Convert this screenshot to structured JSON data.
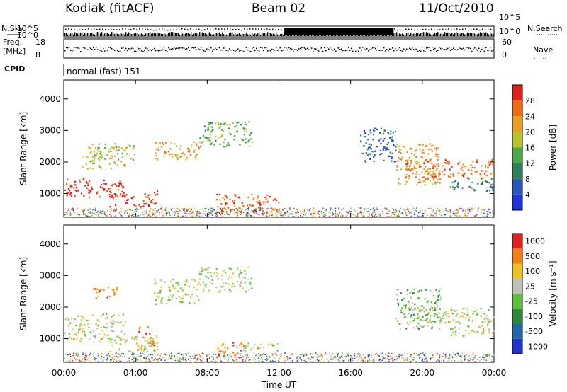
{
  "header": {
    "station": "Kodiak (fitACF)",
    "beam": "Beam 02",
    "date": "11/Oct/2010"
  },
  "panels": {
    "nsky": {
      "label": "N.Sky",
      "ticks": [
        "10^5",
        "10^0"
      ]
    },
    "nsearch": {
      "label": "N.Search",
      "ticks": [
        "10^5",
        "10^0"
      ]
    },
    "freq": {
      "label": "Freq.",
      "unit": "[MHz]",
      "ticks": [
        "18",
        "8"
      ]
    },
    "nave": {
      "label": "Nave",
      "ticks": [
        "60",
        "0"
      ]
    },
    "cpid": {
      "label": "CPID",
      "value": "normal (fast) 151"
    }
  },
  "chart_data": [
    {
      "type": "heatmap",
      "name": "power",
      "ylabel": "Slant Range [km]",
      "yticks": [
        1000,
        2000,
        3000,
        4000
      ],
      "ylim": [
        250,
        4600
      ],
      "colorbar_label": "Power [dB]",
      "colorbar_ticks": [
        "28",
        "24",
        "20",
        "16",
        "12",
        "8",
        "4"
      ],
      "colors": [
        "#1f33d6",
        "#2b57b8",
        "#2f7f5a",
        "#4aa84a",
        "#b8c42a",
        "#e8a020",
        "#f06a10",
        "#e0201a"
      ],
      "regions": [
        {
          "t0": 0.0,
          "t1": 3.4,
          "r0": 900,
          "r1": 1500,
          "level": 7
        },
        {
          "t0": 2.5,
          "t1": 5.2,
          "r0": 600,
          "r1": 1100,
          "level": 7
        },
        {
          "t0": 1.0,
          "t1": 4.0,
          "r0": 1800,
          "r1": 2600,
          "level": 4
        },
        {
          "t0": 5.0,
          "t1": 7.5,
          "r0": 2100,
          "r1": 2700,
          "level": 5
        },
        {
          "t0": 7.5,
          "t1": 10.5,
          "r0": 2500,
          "r1": 3300,
          "level": 3
        },
        {
          "t0": 8.5,
          "t1": 12.0,
          "r0": 400,
          "r1": 1000,
          "level": 6
        },
        {
          "t0": 18.5,
          "t1": 21.0,
          "r0": 1300,
          "r1": 2600,
          "level": 5
        },
        {
          "t0": 19.0,
          "t1": 24.0,
          "r0": 1500,
          "r1": 2100,
          "level": 6
        },
        {
          "t0": 21.5,
          "t1": 24.0,
          "r0": 1100,
          "r1": 1500,
          "level": 2
        },
        {
          "t0": 16.5,
          "t1": 18.5,
          "r0": 2000,
          "r1": 3100,
          "level": 1
        }
      ]
    },
    {
      "type": "heatmap",
      "name": "velocity",
      "ylabel": "Slant Range [km]",
      "yticks": [
        1000,
        2000,
        3000,
        4000
      ],
      "ylim": [
        250,
        4600
      ],
      "colorbar_label": "Velocity [m s⁻¹]",
      "colorbar_ticks": [
        "1000",
        "500",
        "100",
        "25",
        "-25",
        "-100",
        "-500",
        "-1000"
      ],
      "colors": [
        "#2233cc",
        "#2266aa",
        "#2e8a3a",
        "#5cc03a",
        "#c0c0b8",
        "#f0c020",
        "#f08010",
        "#e02020"
      ],
      "regions": [
        {
          "t0": 0.0,
          "t1": 3.4,
          "r0": 900,
          "r1": 1800,
          "level": 4
        },
        {
          "t0": 2.5,
          "t1": 5.2,
          "r0": 600,
          "r1": 1100,
          "level": 4
        },
        {
          "t0": 4.0,
          "t1": 5.0,
          "r0": 700,
          "r1": 1400,
          "level": 6
        },
        {
          "t0": 5.0,
          "t1": 7.5,
          "r0": 2100,
          "r1": 2900,
          "level": 4
        },
        {
          "t0": 7.5,
          "t1": 10.5,
          "r0": 2500,
          "r1": 3300,
          "level": 4
        },
        {
          "t0": 8.5,
          "t1": 10.0,
          "r0": 400,
          "r1": 900,
          "level": 6
        },
        {
          "t0": 10.0,
          "t1": 12.0,
          "r0": 600,
          "r1": 900,
          "level": 4
        },
        {
          "t0": 18.5,
          "t1": 21.0,
          "r0": 1300,
          "r1": 2600,
          "level": 3
        },
        {
          "t0": 19.0,
          "t1": 24.0,
          "r0": 1500,
          "r1": 2000,
          "level": 4
        },
        {
          "t0": 21.5,
          "t1": 24.0,
          "r0": 1100,
          "r1": 1500,
          "level": 4
        },
        {
          "t0": 1.5,
          "t1": 3.0,
          "r0": 2300,
          "r1": 2700,
          "level": 6
        }
      ]
    }
  ],
  "xaxis": {
    "label": "Time UT",
    "ticks": [
      "00:00",
      "04:00",
      "08:00",
      "12:00",
      "16:00",
      "20:00",
      "00:00"
    ],
    "xlim": [
      0,
      24
    ]
  }
}
